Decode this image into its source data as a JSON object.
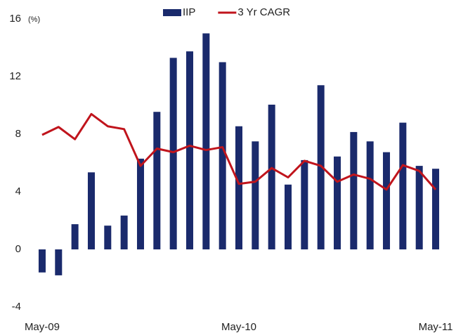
{
  "chart_data": {
    "type": "bar_line",
    "y_label": "(%)",
    "categories": [
      "May-09",
      null,
      null,
      null,
      null,
      null,
      null,
      null,
      null,
      null,
      null,
      null,
      "May-10",
      null,
      null,
      null,
      null,
      null,
      null,
      null,
      null,
      null,
      null,
      null,
      "May-11"
    ],
    "series": [
      {
        "name": "IIP",
        "type": "bar",
        "color": "#1a2a6c",
        "values": [
          -1.6,
          -1.8,
          1.75,
          5.35,
          1.65,
          2.35,
          6.3,
          9.55,
          13.3,
          13.75,
          15.0,
          13.0,
          8.55,
          7.5,
          10.05,
          4.5,
          6.2,
          11.4,
          6.45,
          8.15,
          7.5,
          6.75,
          8.8,
          5.8,
          5.6
        ]
      },
      {
        "name": "3 Yr CAGR",
        "type": "line",
        "color": "#c0141c",
        "values": [
          7.95,
          8.5,
          7.65,
          9.4,
          8.55,
          8.35,
          5.8,
          7.0,
          6.75,
          7.2,
          6.9,
          7.1,
          4.55,
          4.7,
          5.65,
          5.0,
          6.15,
          5.8,
          4.7,
          5.2,
          4.9,
          4.15,
          5.85,
          5.45,
          4.15
        ]
      }
    ],
    "ylim": [
      -4,
      16
    ],
    "yticks": [
      -4,
      0,
      4,
      8,
      12,
      16
    ],
    "grid": false,
    "legend": "top"
  }
}
